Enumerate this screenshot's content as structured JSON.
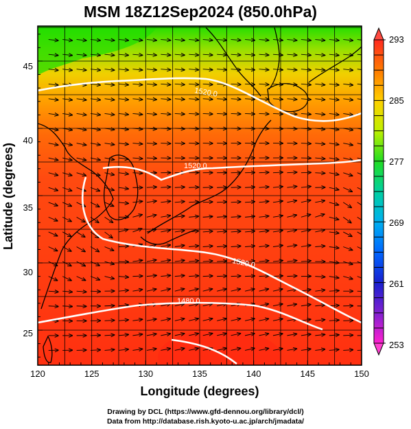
{
  "title": "MSM 18Z12Sep2024 (850.0hPa)",
  "map": {
    "xlabel": "Longitude (degrees)",
    "ylabel": "Latitude  (degrees)",
    "lon_range": [
      120,
      150
    ],
    "lat_range": [
      22.4,
      47.6
    ],
    "lon_ticks": [
      "120",
      "125",
      "130",
      "135",
      "140",
      "145",
      "150"
    ],
    "lat_ticks": [
      "25",
      "30",
      "35",
      "40",
      "45"
    ],
    "contour_labels": [
      "1520.0",
      "1520.0",
      "1520.0",
      "1480.0"
    ]
  },
  "colorbar": {
    "min": 253,
    "max": 293,
    "ticks": [
      "293",
      "285",
      "277",
      "269",
      "261",
      "253"
    ]
  },
  "footer": {
    "line1": "Drawing by DCL (https://www.gfd-dennou.org/library/dcl/)",
    "line2": "Data from http://database.rish.kyoto-u.ac.jp/arch/jmadata/"
  },
  "colors": {
    "warm": "#ff3a10",
    "mid": "#ffaa00",
    "cool": "#33dd00",
    "contour": "#ffffff",
    "vector": "#000000"
  }
}
